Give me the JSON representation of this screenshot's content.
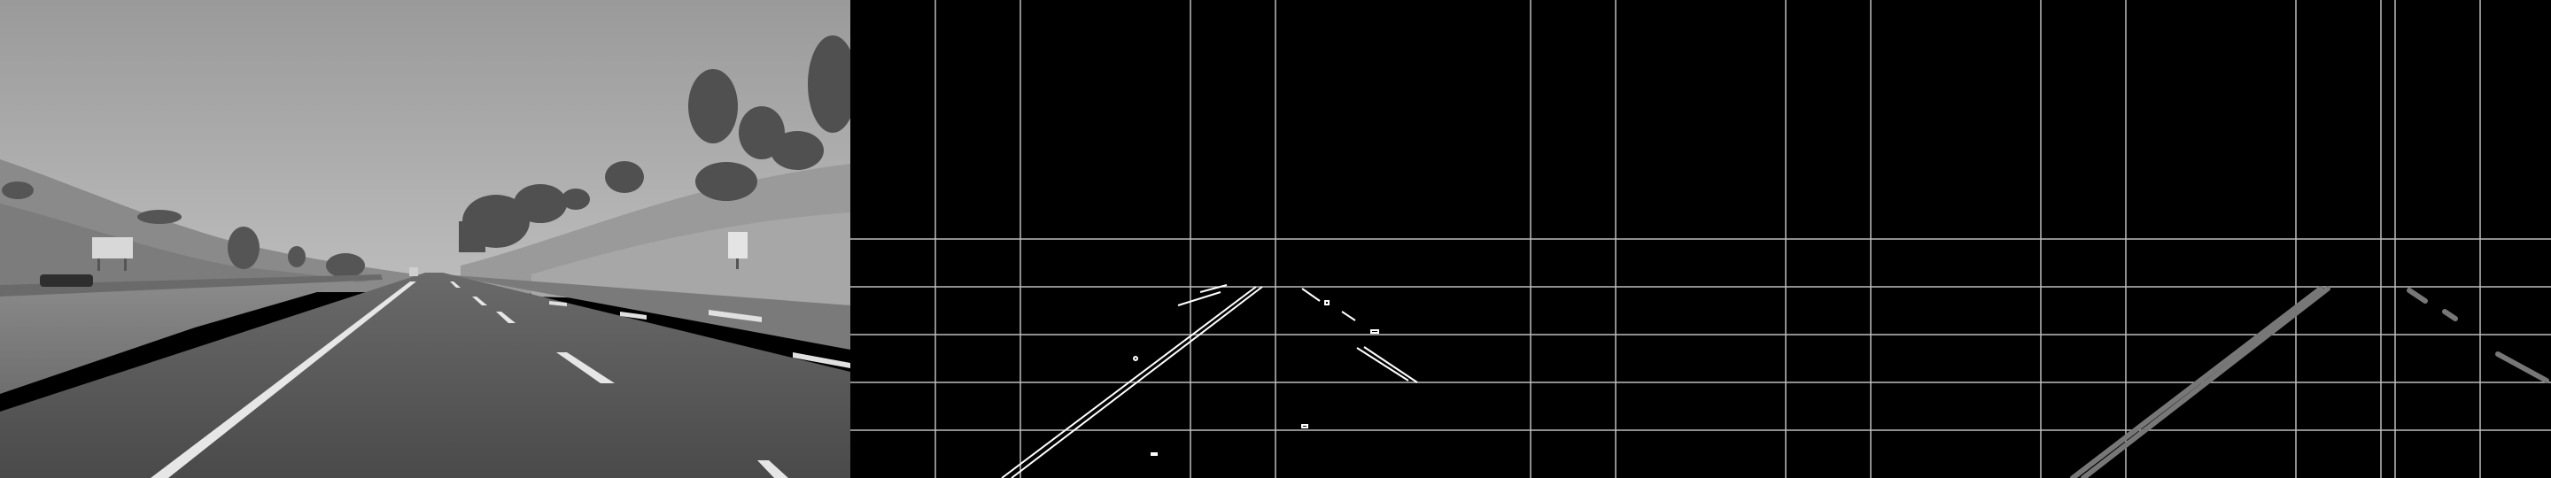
{
  "panels": [
    {
      "name": "grayscale-road"
    },
    {
      "name": "canny-edges-with-grid"
    },
    {
      "name": "hough-lines-with-grid"
    }
  ],
  "colors": {
    "background": "#000000",
    "grid": "#bdbdbd",
    "edge": "#ffffff",
    "hough": "#777777",
    "sky_top": "#9a9a9a",
    "sky_bottom": "#b9b9b9",
    "road": "#545454",
    "hill": "#8f8f8f",
    "trees": "#4b4b4b"
  }
}
